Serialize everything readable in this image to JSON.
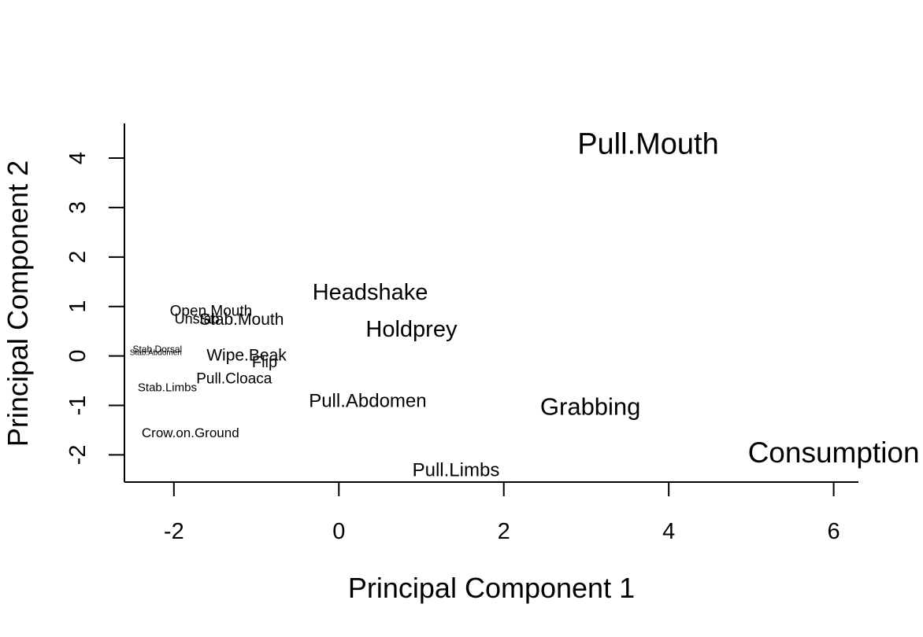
{
  "chart_data": {
    "type": "scatter",
    "title": "",
    "xlabel": "Principal Component 1",
    "ylabel": "Principal Component 2",
    "xlim": [
      -2.6,
      6.3
    ],
    "ylim": [
      -2.55,
      4.7
    ],
    "x_ticks": [
      {
        "value": -2,
        "label": "-2"
      },
      {
        "value": 0,
        "label": "0"
      },
      {
        "value": 2,
        "label": "2"
      },
      {
        "value": 4,
        "label": "4"
      },
      {
        "value": 6,
        "label": "6"
      }
    ],
    "y_ticks": [
      {
        "value": -2,
        "label": "-2"
      },
      {
        "value": -1,
        "label": "-1"
      },
      {
        "value": 0,
        "label": "0"
      },
      {
        "value": 1,
        "label": "1"
      },
      {
        "value": 2,
        "label": "2"
      },
      {
        "value": 3,
        "label": "3"
      },
      {
        "value": 4,
        "label": "4"
      }
    ],
    "grid": false,
    "points": [
      {
        "label": "Pull.Mouth",
        "x": 3.75,
        "y": 4.3,
        "cex": 1.9
      },
      {
        "label": "Consumption",
        "x": 6.0,
        "y": -1.95,
        "cex": 1.85
      },
      {
        "label": "Headshake",
        "x": 0.38,
        "y": 1.3,
        "cex": 1.45
      },
      {
        "label": "Holdprey",
        "x": 0.88,
        "y": 0.55,
        "cex": 1.45
      },
      {
        "label": "Grabbing",
        "x": 3.05,
        "y": -1.02,
        "cex": 1.55
      },
      {
        "label": "Pull.Abdomen",
        "x": 0.35,
        "y": -0.9,
        "cex": 1.2
      },
      {
        "label": "Pull.Limbs",
        "x": 1.42,
        "y": -2.3,
        "cex": 1.2
      },
      {
        "label": "Open.Mouth",
        "x": -1.55,
        "y": 0.92,
        "cex": 0.95
      },
      {
        "label": "Unstab",
        "x": -1.72,
        "y": 0.75,
        "cex": 0.9
      },
      {
        "label": "Stab.Mouth",
        "x": -1.18,
        "y": 0.75,
        "cex": 1.05
      },
      {
        "label": "Wipe.Beak",
        "x": -1.12,
        "y": 0.02,
        "cex": 1.05
      },
      {
        "label": "Flip",
        "x": -0.9,
        "y": -0.12,
        "cex": 1.0
      },
      {
        "label": "Pull.Cloaca",
        "x": -1.27,
        "y": -0.45,
        "cex": 0.95
      },
      {
        "label": "Stab.Dorsal",
        "x": -2.2,
        "y": 0.14,
        "cex": 0.6
      },
      {
        "label": "Stab.Abdomen",
        "x": -2.22,
        "y": 0.07,
        "cex": 0.5
      },
      {
        "label": "Stab.Limbs",
        "x": -2.08,
        "y": -0.63,
        "cex": 0.75
      },
      {
        "label": "Crow.on.Ground",
        "x": -1.8,
        "y": -1.55,
        "cex": 0.85
      }
    ]
  }
}
